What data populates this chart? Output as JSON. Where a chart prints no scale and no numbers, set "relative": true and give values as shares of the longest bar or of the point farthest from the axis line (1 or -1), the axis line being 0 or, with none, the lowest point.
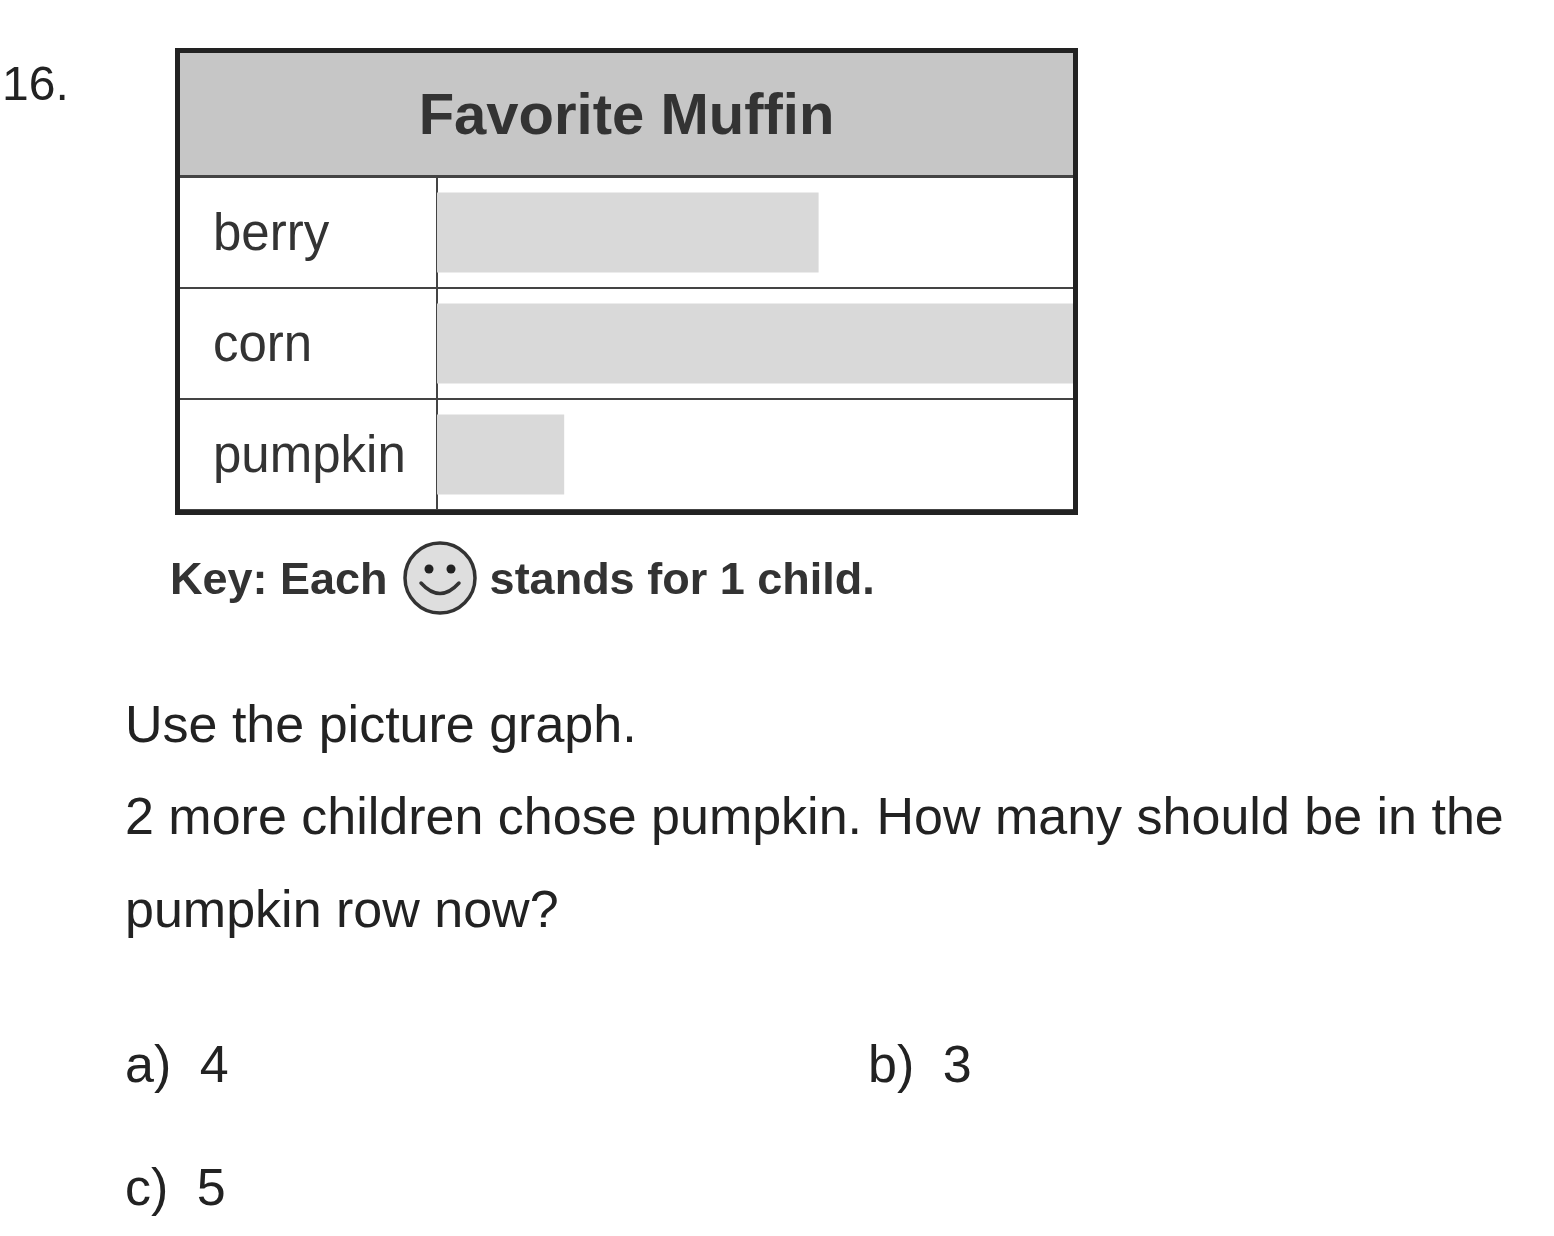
{
  "chart_data": {
    "type": "bar",
    "orientation": "horizontal",
    "relative": true,
    "title": "Favorite Muffin",
    "categories": [
      "berry",
      "corn",
      "pumpkin"
    ],
    "values": [
      0.6,
      1,
      0.2
    ],
    "color": "#d9d9d9",
    "grid": "y",
    "annotations": [
      "16.",
      "Key: Each",
      "stands for 1 child.",
      "Use the picture graph.",
      "2 more children chose pumpkin. How many should be in the pumpkin row now?",
      "a) 4",
      "b) 3",
      "c) 5"
    ]
  }
}
